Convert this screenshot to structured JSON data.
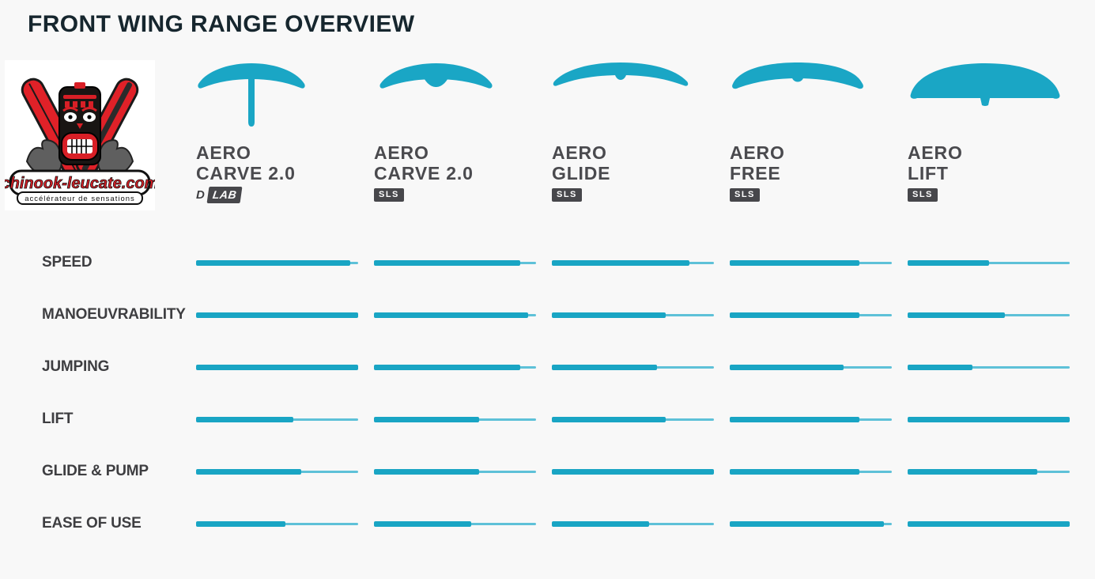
{
  "page": {
    "title": "FRONT WING RANGE OVERVIEW",
    "background": "#f8f8f8"
  },
  "logo": {
    "site": "chinook-leucate.com",
    "tagline": "accélérateur de sensations"
  },
  "colors": {
    "accent_teal": "#1aa6c5",
    "accent_teal_light": "#5ec1d8",
    "title_text": "#16262e",
    "label_text": "#3e3e41",
    "badge_bg": "#47474b",
    "logo_red": "#d81f26"
  },
  "columns": [
    {
      "name_line1": "AERO",
      "name_line2": "CARVE 2.0",
      "badge": {
        "prefix": "D",
        "label": "LAB"
      },
      "icon": "wing-carve-dlab-icon"
    },
    {
      "name_line1": "AERO",
      "name_line2": "CARVE 2.0",
      "badge": {
        "label": "SLS"
      },
      "icon": "wing-carve-sls-icon"
    },
    {
      "name_line1": "AERO",
      "name_line2": "GLIDE",
      "badge": {
        "label": "SLS"
      },
      "icon": "wing-glide-icon"
    },
    {
      "name_line1": "AERO",
      "name_line2": "FREE",
      "badge": {
        "label": "SLS"
      },
      "icon": "wing-free-icon"
    },
    {
      "name_line1": "AERO",
      "name_line2": "LIFT",
      "badge": {
        "label": "SLS"
      },
      "icon": "wing-lift-icon"
    }
  ],
  "chart_data": {
    "type": "bar",
    "orientation": "horizontal-rating-bars",
    "scale_max": 10,
    "legend_position": "none",
    "grid": false,
    "categories": [
      "SPEED",
      "MANOEUVRABILITY",
      "JUMPING",
      "LIFT",
      "GLIDE & PUMP",
      "EASE OF USE"
    ],
    "series": [
      {
        "name": "AERO CARVE 2.0 D/LAB",
        "values": [
          9.5,
          10,
          10,
          6,
          6.5,
          5.5
        ]
      },
      {
        "name": "AERO CARVE 2.0 SLS",
        "values": [
          9,
          9.5,
          9,
          6.5,
          6.5,
          6
        ]
      },
      {
        "name": "AERO GLIDE SLS",
        "values": [
          8.5,
          7,
          6.5,
          7,
          10,
          6
        ]
      },
      {
        "name": "AERO FREE SLS",
        "values": [
          8,
          8,
          7,
          8,
          8,
          9.5
        ]
      },
      {
        "name": "AERO LIFT SLS",
        "values": [
          5,
          6,
          4,
          10,
          8,
          10
        ]
      }
    ]
  }
}
